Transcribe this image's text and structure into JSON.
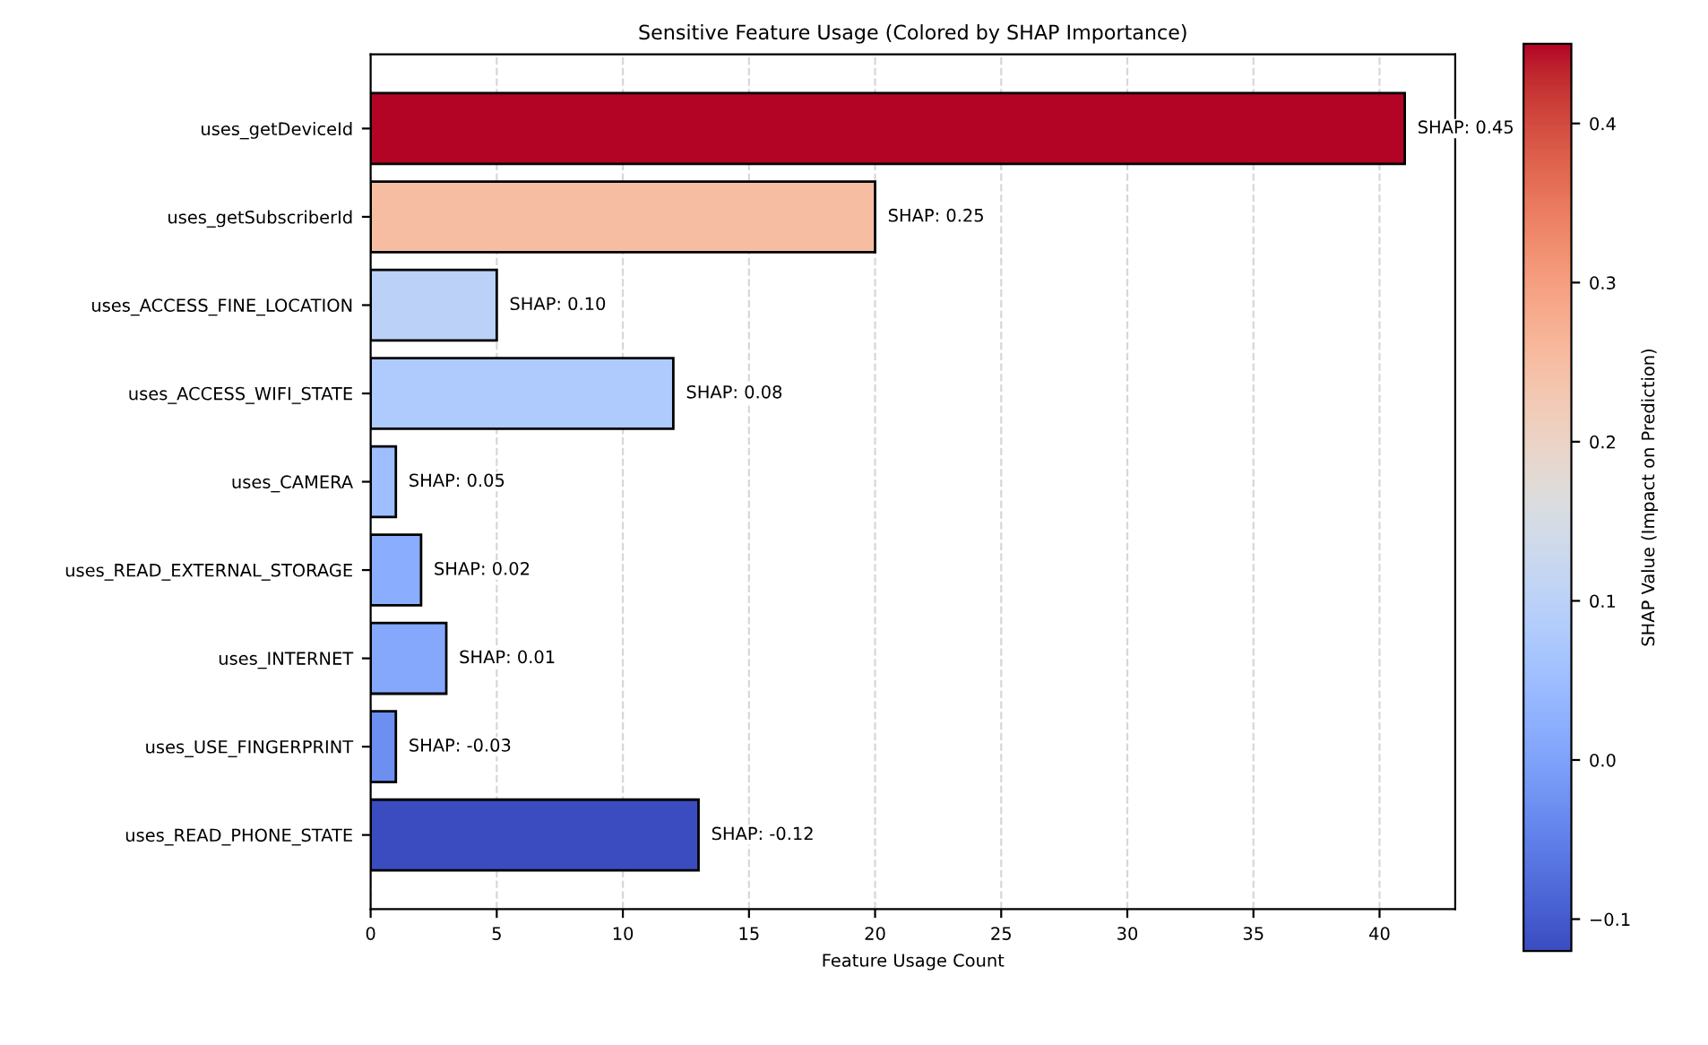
{
  "chart_data": {
    "type": "bar",
    "orientation": "horizontal",
    "title": "Sensitive Feature Usage (Colored by SHAP Importance)",
    "xlabel": "Feature Usage Count",
    "clabel": "SHAP Value (Impact on Prediction)",
    "categories": [
      "uses_getDeviceId",
      "uses_getSubscriberId",
      "uses_ACCESS_FINE_LOCATION",
      "uses_ACCESS_WIFI_STATE",
      "uses_CAMERA",
      "uses_READ_EXTERNAL_STORAGE",
      "uses_INTERNET",
      "uses_USE_FINGERPRINT",
      "uses_READ_PHONE_STATE"
    ],
    "values": [
      41,
      20,
      5,
      12,
      1,
      2,
      3,
      1,
      13
    ],
    "cvalues": [
      0.45,
      0.25,
      0.1,
      0.08,
      0.05,
      0.02,
      0.01,
      -0.03,
      -0.12
    ],
    "annotations": [
      {
        "text": "SHAP: 0.45",
        "x": 41,
        "y": "uses_getDeviceId"
      },
      {
        "text": "SHAP: 0.25",
        "x": 20,
        "y": "uses_getSubscriberId"
      },
      {
        "text": "SHAP: 0.10",
        "x": 5,
        "y": "uses_ACCESS_FINE_LOCATION"
      },
      {
        "text": "SHAP: 0.08",
        "x": 12,
        "y": "uses_ACCESS_WIFI_STATE"
      },
      {
        "text": "SHAP: 0.05",
        "x": 1,
        "y": "uses_CAMERA"
      },
      {
        "text": "SHAP: 0.02",
        "x": 2,
        "y": "uses_READ_EXTERNAL_STORAGE"
      },
      {
        "text": "SHAP: 0.01",
        "x": 3,
        "y": "uses_INTERNET"
      },
      {
        "text": "SHAP: -0.03",
        "x": 1,
        "y": "uses_USE_FINGERPRINT"
      },
      {
        "text": "SHAP: -0.12",
        "x": 13,
        "y": "uses_READ_PHONE_STATE"
      }
    ],
    "clim": [
      -0.12,
      0.45
    ],
    "cticks": [
      {
        "value": -0.1,
        "label": "−0.1"
      },
      {
        "value": 0,
        "label": "0.0"
      },
      {
        "value": 0.1,
        "label": "0.1"
      },
      {
        "value": 0.2,
        "label": "0.2"
      },
      {
        "value": 0.3,
        "label": "0.3"
      },
      {
        "value": 0.4,
        "label": "0.4"
      }
    ],
    "xlim": [
      0,
      43
    ],
    "xticks": [
      0,
      5,
      10,
      15,
      20,
      25,
      30,
      35,
      40
    ],
    "grid": "x"
  }
}
